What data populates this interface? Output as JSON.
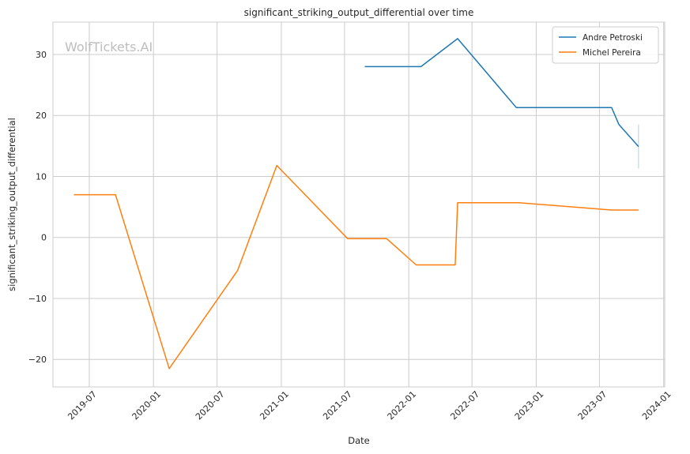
{
  "chart_data": {
    "type": "line",
    "title": "significant_striking_output_differential over time",
    "xlabel": "Date",
    "ylabel": "significant_striking_output_differential",
    "watermark": "WolfTickets.AI",
    "x_ticks": [
      "2019-07",
      "2020-01",
      "2020-07",
      "2021-01",
      "2021-07",
      "2022-01",
      "2022-07",
      "2023-01",
      "2023-07",
      "2024-01"
    ],
    "y_ticks": [
      -20,
      -10,
      0,
      10,
      20,
      30
    ],
    "xlim": [
      "2019-03-19",
      "2024-01-04"
    ],
    "ylim": [
      -24.5,
      35.3
    ],
    "grid": true,
    "legend_position": "top-right",
    "series": [
      {
        "name": "Andre Petroski",
        "color": "#1f77b4",
        "points": [
          {
            "x": "2021-08-28",
            "y": 28.0
          },
          {
            "x": "2022-02-05",
            "y": 28.0
          },
          {
            "x": "2022-05-21",
            "y": 32.6
          },
          {
            "x": "2022-11-05",
            "y": 21.3
          },
          {
            "x": "2023-08-05",
            "y": 21.3
          },
          {
            "x": "2023-08-26",
            "y": 18.5
          },
          {
            "x": "2023-10-21",
            "y": 14.9
          }
        ],
        "error_bar": {
          "x": "2023-10-21",
          "low": 11.3,
          "high": 18.5
        }
      },
      {
        "name": "Michel Pereira",
        "color": "#ff7f0e",
        "points": [
          {
            "x": "2019-05-18",
            "y": 7.0
          },
          {
            "x": "2019-09-14",
            "y": 7.0
          },
          {
            "x": "2020-02-15",
            "y": -21.5
          },
          {
            "x": "2020-08-29",
            "y": -5.4
          },
          {
            "x": "2020-12-19",
            "y": 11.8
          },
          {
            "x": "2021-07-10",
            "y": -0.2
          },
          {
            "x": "2021-10-30",
            "y": -0.2
          },
          {
            "x": "2022-01-22",
            "y": -4.5
          },
          {
            "x": "2022-05-14",
            "y": -4.5
          },
          {
            "x": "2022-05-21",
            "y": 5.7
          },
          {
            "x": "2022-11-12",
            "y": 5.7
          },
          {
            "x": "2023-08-05",
            "y": 4.5
          },
          {
            "x": "2023-10-21",
            "y": 4.5
          }
        ]
      }
    ]
  }
}
